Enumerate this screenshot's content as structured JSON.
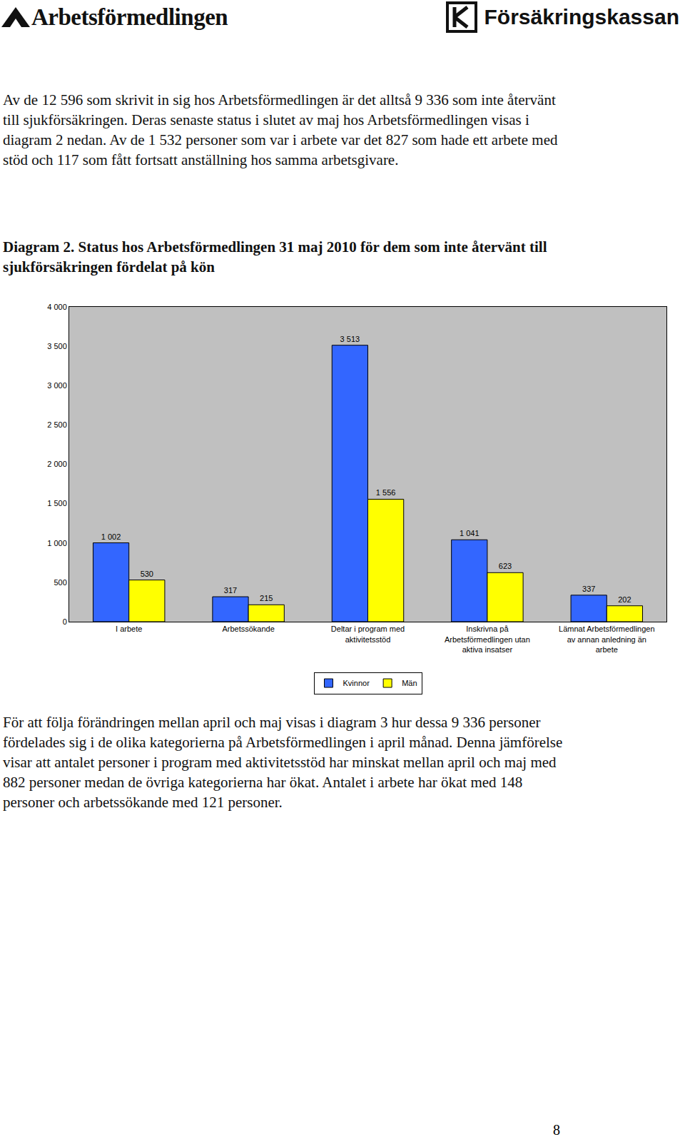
{
  "header": {
    "left_logo": "Arbetsförmedlingen",
    "right_logo": "Försäkringskassan"
  },
  "paragraphs_before": [
    "Av de 12 596 som skrivit in sig hos Arbetsförmedlingen är det alltså 9 336 som inte återvänt till sjukförsäkringen. Deras senaste status i slutet av maj hos Arbetsförmedlingen visas i diagram 2 nedan. Av de 1 532 personer som var i arbete var det 827 som hade ett arbete med stöd och 117 som fått fortsatt anställning hos samma arbetsgivare."
  ],
  "figure_title": "Diagram 2. Status hos Arbetsförmedlingen 31 maj 2010 för dem som inte återvänt till sjukförsäkringen fördelat på kön",
  "chart_data": {
    "type": "bar",
    "categories": [
      "I arbete",
      "Arbetssökande",
      "Deltar i program med aktivitetsstöd",
      "Inskrivna på Arbetsförmedlingen utan aktiva insatser",
      "Lämnat Arbetsförmedlingen av annan anledning än arbete"
    ],
    "series": [
      {
        "name": "Kvinnor",
        "color": "#3366ff",
        "values": [
          1002,
          317,
          3513,
          1041,
          337
        ],
        "value_labels": [
          "1 002",
          "317",
          "3 513",
          "1 041",
          "337"
        ]
      },
      {
        "name": "Män",
        "color": "#ffff00",
        "values": [
          530,
          215,
          1556,
          623,
          202
        ],
        "value_labels": [
          "530",
          "215",
          "1 556",
          "623",
          "202"
        ]
      }
    ],
    "ylim": [
      0,
      4000
    ],
    "yticks": [
      0,
      500,
      {
        "value": 1000,
        "label": "1 000"
      },
      {
        "value": 1500,
        "label": "1 500"
      },
      {
        "value": 2000,
        "label": "2 000"
      },
      {
        "value": 2500,
        "label": "2 500"
      },
      {
        "value": 3000,
        "label": "3 000"
      },
      {
        "value": 3500,
        "label": "3 500"
      },
      {
        "value": 4000,
        "label": "4 000"
      }
    ],
    "grid": false,
    "legend": "bottom",
    "data_labels": true
  },
  "paragraphs_after": [
    "För att följa förändringen mellan april och maj visas i diagram 3 hur dessa 9 336 personer fördelades sig i de olika kategorierna på Arbetsförmedlingen i april månad. Denna jämförelse visar att antalet personer i program med aktivitetsstöd har minskat mellan april och maj med 882 personer medan de övriga kategorierna har ökat. Antalet i arbete har ökat med 148 personer och arbetssökande med 121 personer."
  ],
  "page_number": 8
}
